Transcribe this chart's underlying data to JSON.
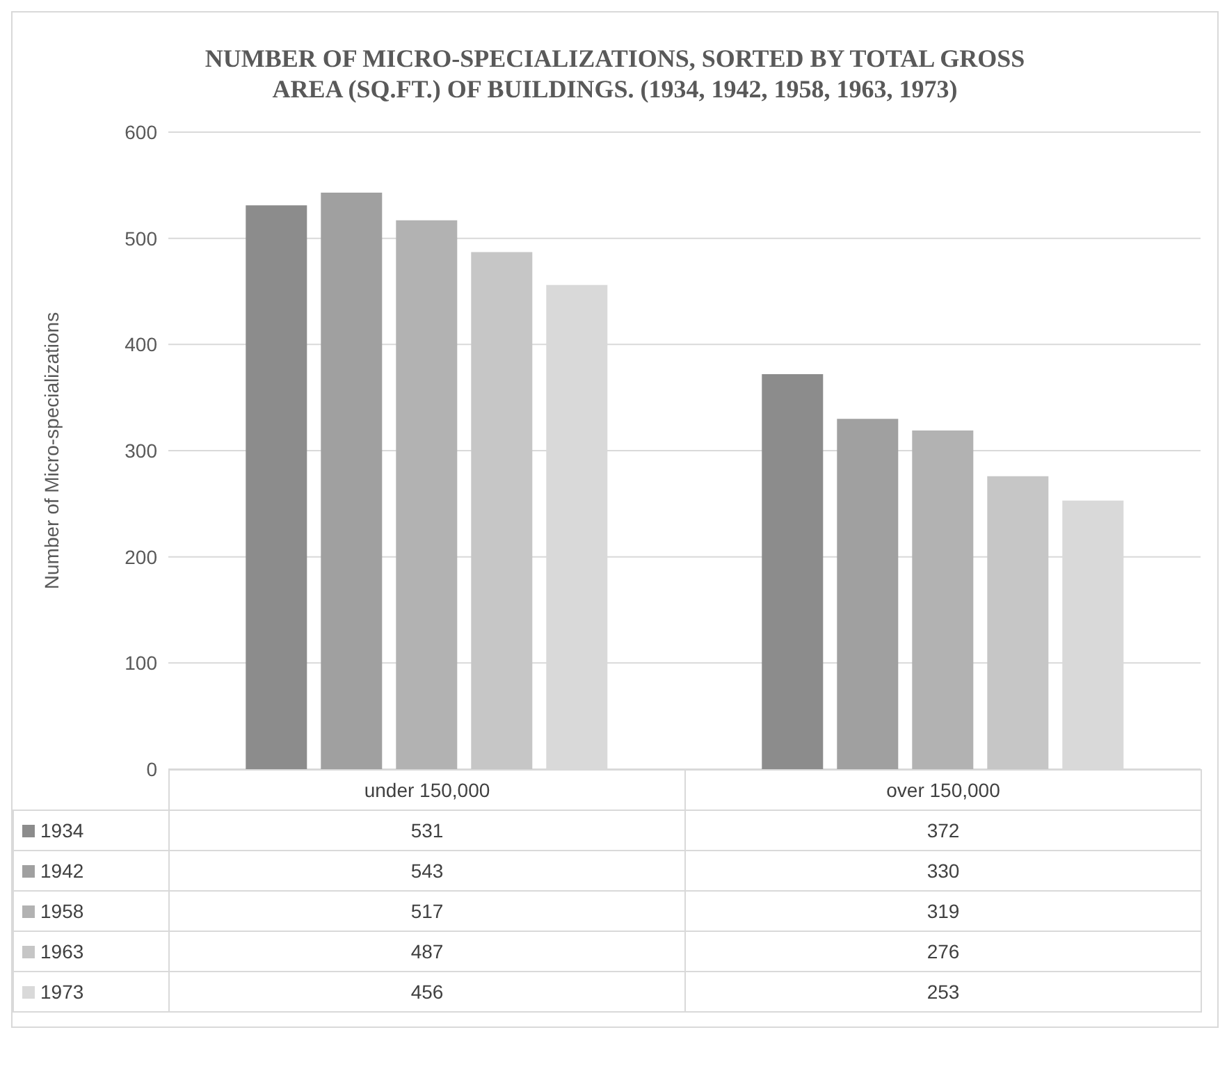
{
  "chart_data": {
    "type": "bar",
    "title": "NUMBER OF MICRO-SPECIALIZATIONS, SORTED BY TOTAL GROSS AREA (SQ.FT.) OF BUILDINGS. (1934, 1942, 1958, 1963, 1973)",
    "ylabel": "Number of Micro-specializations",
    "categories": [
      "under 150,000",
      "over 150,000"
    ],
    "series": [
      {
        "name": "1934",
        "color": "#8c8c8c",
        "values": [
          531,
          372
        ]
      },
      {
        "name": "1942",
        "color": "#a0a0a0",
        "values": [
          543,
          330
        ]
      },
      {
        "name": "1958",
        "color": "#b2b2b2",
        "values": [
          517,
          319
        ]
      },
      {
        "name": "1963",
        "color": "#c6c6c6",
        "values": [
          487,
          276
        ]
      },
      {
        "name": "1973",
        "color": "#d9d9d9",
        "values": [
          456,
          253
        ]
      }
    ],
    "ylim": [
      0,
      600
    ],
    "yticks": [
      0,
      100,
      200,
      300,
      400,
      500,
      600
    ],
    "grid": "y",
    "legend": "bottom",
    "data_labels": true
  }
}
